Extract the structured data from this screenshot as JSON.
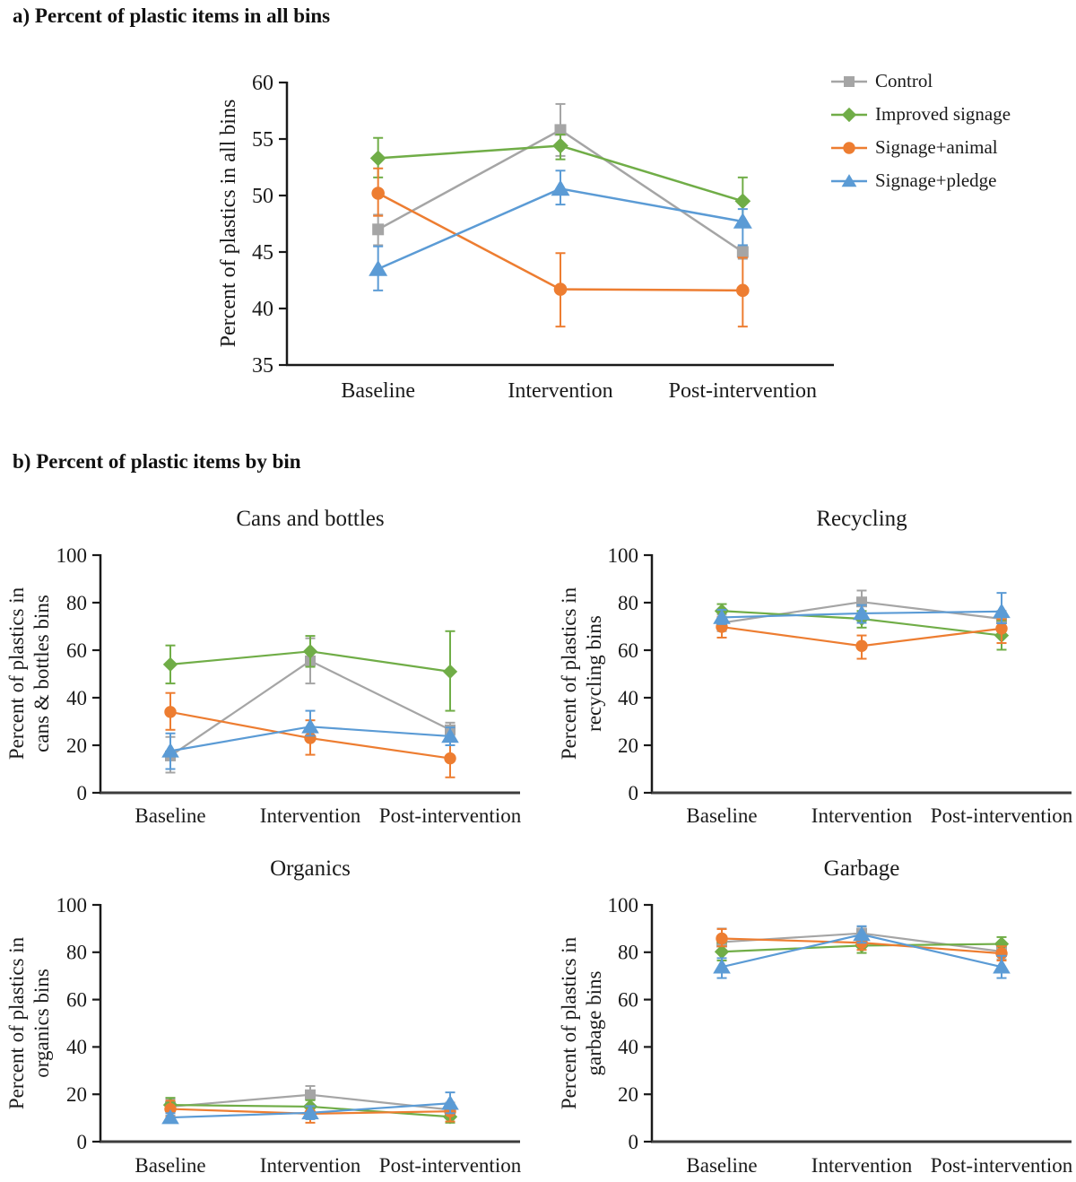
{
  "figure": {
    "panel_a_heading": "a) Percent of plastic items in all bins",
    "panel_b_heading": "b) Percent of plastic items by bin"
  },
  "legend": {
    "position": "right-of-panel-a",
    "items": [
      {
        "label": "Control",
        "color": "#A5A5A5",
        "marker": "square"
      },
      {
        "label": "Improved signage",
        "color": "#70AD47",
        "marker": "diamond"
      },
      {
        "label": "Signage+animal",
        "color": "#ED7D31",
        "marker": "circle"
      },
      {
        "label": "Signage+pledge",
        "color": "#5B9BD5",
        "marker": "triangle"
      }
    ]
  },
  "chart_data": [
    {
      "id": "all_bins",
      "type": "line",
      "title": "",
      "ylabel_lines": [
        "Percent of plastics in all bins"
      ],
      "categories": [
        "Baseline",
        "Intervention",
        "Post-intervention"
      ],
      "ylim": [
        35,
        60
      ],
      "ytick_step": 5,
      "grid": false,
      "legend_position": "right",
      "series": [
        {
          "name": "Control",
          "color": "#A5A5A5",
          "marker": "square",
          "values": [
            47.0,
            55.8,
            45.0
          ],
          "errors": [
            [
              45.6,
              48.3
            ],
            [
              53.5,
              58.1
            ],
            [
              44.4,
              45.6
            ]
          ]
        },
        {
          "name": "Improved signage",
          "color": "#70AD47",
          "marker": "diamond",
          "values": [
            53.3,
            54.4,
            49.5
          ],
          "errors": [
            [
              51.6,
              55.1
            ],
            [
              53.2,
              55.4
            ],
            [
              47.4,
              51.6
            ]
          ]
        },
        {
          "name": "Signage+animal",
          "color": "#ED7D31",
          "marker": "circle",
          "values": [
            50.2,
            41.7,
            41.6
          ],
          "errors": [
            [
              48.2,
              52.4
            ],
            [
              38.4,
              44.9
            ],
            [
              38.4,
              44.5
            ]
          ]
        },
        {
          "name": "Signage+pledge",
          "color": "#5B9BD5",
          "marker": "triangle",
          "values": [
            43.5,
            50.6,
            47.7
          ],
          "errors": [
            [
              41.6,
              45.5
            ],
            [
              49.2,
              52.2
            ],
            [
              45.6,
              48.8
            ]
          ]
        }
      ]
    },
    {
      "id": "cans",
      "type": "line",
      "title": "Cans and bottles",
      "ylabel_lines": [
        "Percent of plastics in",
        "cans & bottles bins"
      ],
      "categories": [
        "Baseline",
        "Intervention",
        "Post-intervention"
      ],
      "ylim": [
        0,
        100
      ],
      "ytick_step": 20,
      "grid": false,
      "series": [
        {
          "name": "Control",
          "color": "#A5A5A5",
          "marker": "square",
          "values": [
            15.5,
            55.5,
            26.5
          ],
          "errors": [
            [
              8.5,
              23.5
            ],
            [
              46.0,
              65.0
            ],
            [
              24.0,
              29.5
            ]
          ]
        },
        {
          "name": "Improved signage",
          "color": "#70AD47",
          "marker": "diamond",
          "values": [
            54.0,
            59.5,
            51.0
          ],
          "errors": [
            [
              46.0,
              62.0
            ],
            [
              53.0,
              66.0
            ],
            [
              34.5,
              68.0
            ]
          ]
        },
        {
          "name": "Signage+animal",
          "color": "#ED7D31",
          "marker": "circle",
          "values": [
            34.0,
            23.0,
            14.5
          ],
          "errors": [
            [
              26.5,
              42.0
            ],
            [
              16.0,
              30.5
            ],
            [
              6.5,
              22.0
            ]
          ]
        },
        {
          "name": "Signage+pledge",
          "color": "#5B9BD5",
          "marker": "triangle",
          "values": [
            17.6,
            27.8,
            23.8
          ],
          "errors": [
            [
              10.0,
              25.0
            ],
            [
              24.0,
              34.5
            ],
            [
              20.0,
              27.5
            ]
          ]
        }
      ]
    },
    {
      "id": "recycling",
      "type": "line",
      "title": "Recycling",
      "ylabel_lines": [
        "Percent of plastics in",
        "recycling bins"
      ],
      "categories": [
        "Baseline",
        "Intervention",
        "Post-intervention"
      ],
      "ylim": [
        0,
        100
      ],
      "ytick_step": 20,
      "grid": false,
      "series": [
        {
          "name": "Control",
          "color": "#A5A5A5",
          "marker": "square",
          "values": [
            71.5,
            80.3,
            73.2
          ],
          "errors": [
            [
              68.0,
              75.0
            ],
            [
              75.7,
              85.1
            ],
            [
              70.0,
              76.5
            ]
          ]
        },
        {
          "name": "Improved signage",
          "color": "#70AD47",
          "marker": "diamond",
          "values": [
            76.5,
            73.2,
            66.2
          ],
          "errors": [
            [
              73.5,
              79.4
            ],
            [
              69.5,
              76.5
            ],
            [
              60.2,
              72.5
            ]
          ]
        },
        {
          "name": "Signage+animal",
          "color": "#ED7D31",
          "marker": "circle",
          "values": [
            69.8,
            61.8,
            69.1
          ],
          "errors": [
            [
              65.3,
              74.0
            ],
            [
              56.4,
              66.2
            ],
            [
              63.0,
              73.0
            ]
          ]
        },
        {
          "name": "Signage+pledge",
          "color": "#5B9BD5",
          "marker": "triangle",
          "values": [
            73.8,
            75.5,
            76.3
          ],
          "errors": [
            [
              71.0,
              77.0
            ],
            [
              71.5,
              79.0
            ],
            [
              71.3,
              84.1
            ]
          ]
        }
      ]
    },
    {
      "id": "organics",
      "type": "line",
      "title": "Organics",
      "ylabel_lines": [
        "Percent of plastics in",
        "organics bins"
      ],
      "categories": [
        "Baseline",
        "Intervention",
        "Post-intervention"
      ],
      "ylim": [
        0,
        100
      ],
      "ytick_step": 20,
      "grid": false,
      "series": [
        {
          "name": "Control",
          "color": "#A5A5A5",
          "marker": "square",
          "values": [
            14.8,
            19.8,
            13.5
          ],
          "errors": [
            [
              11.0,
              18.0
            ],
            [
              15.3,
              23.5
            ],
            [
              10.5,
              16.5
            ]
          ]
        },
        {
          "name": "Improved signage",
          "color": "#70AD47",
          "marker": "diamond",
          "values": [
            15.5,
            14.8,
            10.5
          ],
          "errors": [
            [
              13.0,
              18.5
            ],
            [
              12.0,
              17.5
            ],
            [
              8.0,
              13.0
            ]
          ]
        },
        {
          "name": "Signage+animal",
          "color": "#ED7D31",
          "marker": "circle",
          "values": [
            13.8,
            11.8,
            12.8
          ],
          "errors": [
            [
              10.5,
              17.3
            ],
            [
              8.0,
              15.0
            ],
            [
              8.5,
              16.0
            ]
          ]
        },
        {
          "name": "Signage+pledge",
          "color": "#5B9BD5",
          "marker": "triangle",
          "values": [
            10.2,
            12.2,
            16.2
          ],
          "errors": [
            [
              8.5,
              12.0
            ],
            [
              9.5,
              15.0
            ],
            [
              12.0,
              20.8
            ]
          ]
        }
      ]
    },
    {
      "id": "garbage",
      "type": "line",
      "title": "Garbage",
      "ylabel_lines": [
        "Percent of plastics in",
        "garbage bins"
      ],
      "categories": [
        "Baseline",
        "Intervention",
        "Post-intervention"
      ],
      "ylim": [
        0,
        100
      ],
      "ytick_step": 20,
      "grid": false,
      "series": [
        {
          "name": "Control",
          "color": "#A5A5A5",
          "marker": "square",
          "values": [
            84.3,
            88.0,
            80.3
          ],
          "errors": [
            [
              81.0,
              90.0
            ],
            [
              85.5,
              90.8
            ],
            [
              77.0,
              83.5
            ]
          ]
        },
        {
          "name": "Improved signage",
          "color": "#70AD47",
          "marker": "diamond",
          "values": [
            80.2,
            82.8,
            83.5
          ],
          "errors": [
            [
              76.5,
              84.0
            ],
            [
              79.7,
              86.0
            ],
            [
              80.5,
              86.4
            ]
          ]
        },
        {
          "name": "Signage+animal",
          "color": "#ED7D31",
          "marker": "circle",
          "values": [
            85.8,
            84.0,
            79.5
          ],
          "errors": [
            [
              82.5,
              89.8
            ],
            [
              81.0,
              87.0
            ],
            [
              76.5,
              82.5
            ]
          ]
        },
        {
          "name": "Signage+pledge",
          "color": "#5B9BD5",
          "marker": "triangle",
          "values": [
            73.8,
            87.5,
            73.8
          ],
          "errors": [
            [
              69.1,
              77.5
            ],
            [
              84.0,
              91.0
            ],
            [
              69.1,
              78.5
            ]
          ]
        }
      ]
    }
  ]
}
